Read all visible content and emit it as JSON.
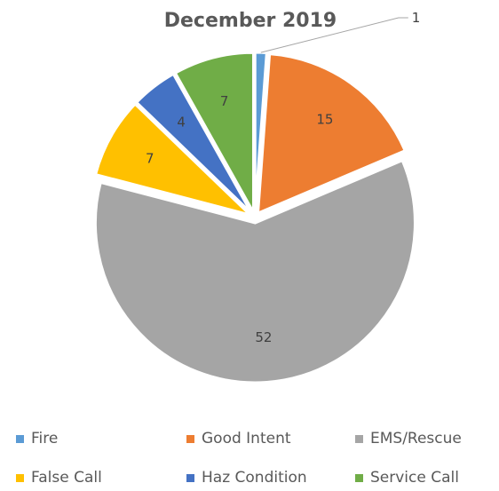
{
  "chart_data": {
    "type": "pie",
    "title": "December 2019",
    "categories": [
      "Fire",
      "Good Intent",
      "EMS/Rescue",
      "False Call",
      "Haz Condition",
      "Service Call"
    ],
    "values": [
      1,
      15,
      52,
      7,
      4,
      7
    ],
    "colors": [
      "#5b9bd5",
      "#ed7d31",
      "#a5a5a5",
      "#ffc000",
      "#4472c4",
      "#70ad47"
    ],
    "exploded": true,
    "legend_placement": "bottom"
  }
}
